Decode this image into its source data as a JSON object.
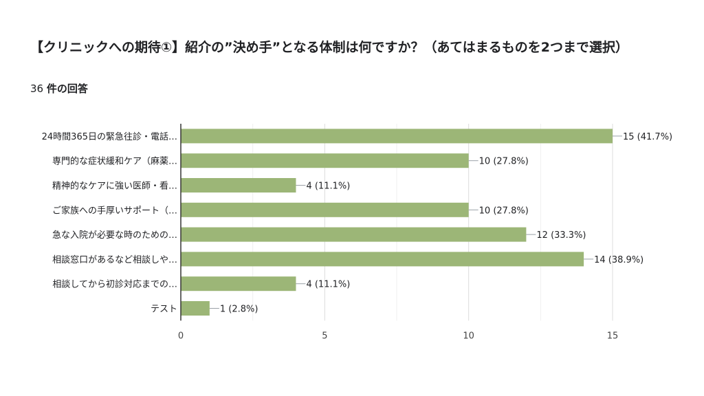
{
  "header": {
    "title": "【クリニックへの期待①】紹介の”決め手”となる体制は何ですか？（あてはまるものを2つまで選択）",
    "response_count": "36",
    "response_suffix": "件の回答"
  },
  "chart_data": {
    "type": "bar",
    "orientation": "horizontal",
    "categories": [
      "24時間365日の緊急往診・電話…",
      "専門的な症状緩和ケア（麻薬…",
      "精神的なケアに強い医師・看…",
      "ご家族への手厚いサポート（…",
      "急な入院が必要な時のための…",
      "相談窓口があるなど相談しや…",
      "相談してから初診対応までの…",
      "テスト"
    ],
    "values": [
      15,
      10,
      4,
      10,
      12,
      14,
      4,
      1
    ],
    "data_labels": [
      "15 (41.7%)",
      "10 (27.8%)",
      "4 (11.1%)",
      "10 (27.8%)",
      "12 (33.3%)",
      "14 (38.9%)",
      "4 (11.1%)",
      "1 (2.8%)"
    ],
    "xlim": [
      0,
      15
    ],
    "xticks": [
      "0",
      "5",
      "10",
      "15"
    ],
    "grid": true,
    "bar_color": "#9cb677",
    "legend": "none"
  }
}
